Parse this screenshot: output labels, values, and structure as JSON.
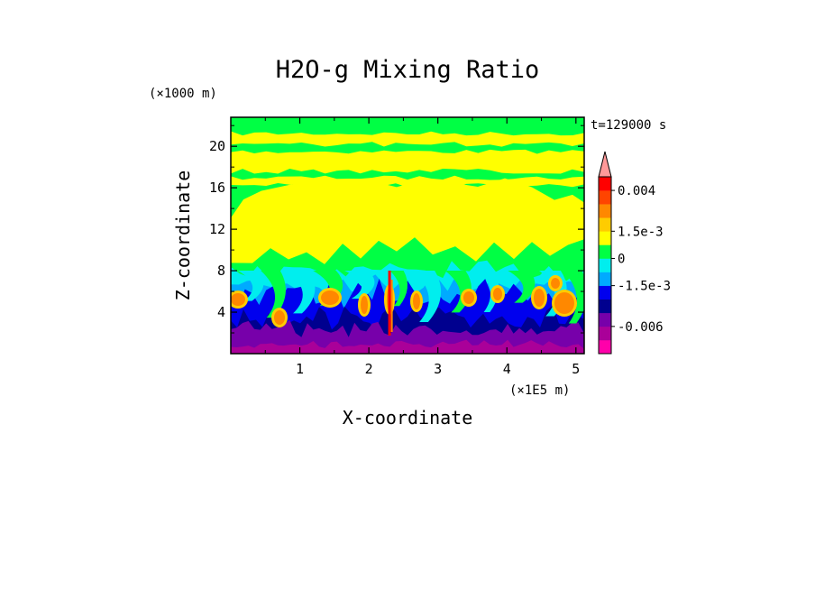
{
  "chart_data": {
    "type": "heatmap",
    "title": "H2O-g Mixing Ratio",
    "time_label": "t=129000 s",
    "xlabel": "X-coordinate",
    "ylabel": "Z-coordinate",
    "x_multiplier": "(×1E5 m)",
    "y_multiplier": "(×1000 m)",
    "xlim": [
      0,
      5.12
    ],
    "ylim": [
      0,
      22.8
    ],
    "x_ticks": [
      1,
      2,
      3,
      4,
      5
    ],
    "x_tick_labels": [
      "1",
      "2",
      "3",
      "4",
      "5"
    ],
    "y_ticks": [
      4,
      8,
      12,
      16,
      20
    ],
    "y_tick_labels": [
      "4",
      "8",
      "12",
      "16",
      "20"
    ],
    "grid": false,
    "colorbar": {
      "placement": "right",
      "extend_max": true,
      "levels_bottom_to_top": [
        {
          "color": "#ff00aa"
        },
        {
          "color": "#aa0099"
        },
        {
          "color": "#7700aa"
        },
        {
          "color": "#00008f"
        },
        {
          "color": "#0000ee"
        },
        {
          "color": "#00aaff"
        },
        {
          "color": "#00eeee"
        },
        {
          "color": "#00ff44"
        },
        {
          "color": "#ffff00"
        },
        {
          "color": "#ffcc00"
        },
        {
          "color": "#ff8800"
        },
        {
          "color": "#ff4400"
        },
        {
          "color": "#ff0000"
        },
        {
          "color": "#ff9999"
        }
      ],
      "tick_labels": [
        {
          "label": "0.004",
          "value": 0.004
        },
        {
          "label": "1.5e-3",
          "value": 0.0015
        },
        {
          "label": "0",
          "value": 0
        },
        {
          "label": "-1.5e-3",
          "value": -0.0015
        },
        {
          "label": "-0.006",
          "value": -0.006
        }
      ]
    },
    "bands": [
      {
        "name": "upper-stratified-yellow-green",
        "z_range": [
          17,
          22.8
        ],
        "dominant": "#ffff00"
      },
      {
        "name": "mid-yellow-dome",
        "z_range": [
          10,
          17
        ],
        "dominant": "#ffff00"
      },
      {
        "name": "green-cyan-transition",
        "z_range": [
          7,
          10
        ],
        "dominant": "#00ff44"
      },
      {
        "name": "convective-plumes-blue-orange",
        "z_range": [
          3,
          7
        ],
        "dominant": "#0000ee"
      },
      {
        "name": "near-surface-purple",
        "z_range": [
          0,
          3
        ],
        "dominant": "#7700aa"
      }
    ]
  }
}
